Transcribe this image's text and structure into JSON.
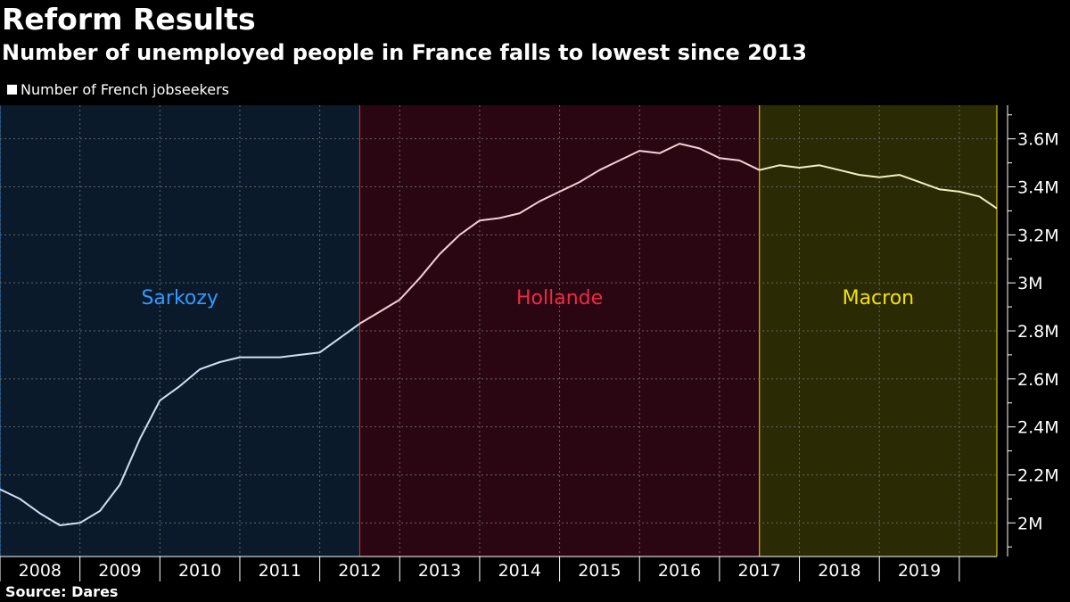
{
  "header": {
    "title": "Reform Results",
    "subtitle": "Number of unemployed people in France falls to lowest since 2013",
    "legend_label": "Number of French jobseekers"
  },
  "footer": {
    "source": "Source: Dares"
  },
  "colors": {
    "sarkozy_bg": "#0a1a2a",
    "sarkozy_label": "#3399ff",
    "sarkozy_line": "#cfe0f5",
    "hollande_bg": "#2a0612",
    "hollande_label": "#ee2a44",
    "hollande_line": "#f4cfd6",
    "macron_bg": "#2a2a05",
    "macron_label": "#f5e100",
    "macron_line": "#f3f0c4",
    "grid": "#666666"
  },
  "chart_data": {
    "type": "line",
    "title": "Reform Results",
    "subtitle": "Number of unemployed people in France falls to lowest since 2013",
    "xlabel": "",
    "ylabel": "",
    "xlim": [
      2007.5,
      2019.97
    ],
    "ylim": [
      1.86,
      3.74
    ],
    "y_ticks": [
      2.0,
      2.2,
      2.4,
      2.6,
      2.8,
      3.0,
      3.2,
      3.4,
      3.6
    ],
    "y_tick_labels": [
      "2M",
      "2.2M",
      "2.4M",
      "2.6M",
      "2.8M",
      "3M",
      "3.2M",
      "3.4M",
      "3.6M"
    ],
    "x_ticks": [
      2008,
      2009,
      2010,
      2011,
      2012,
      2013,
      2014,
      2015,
      2016,
      2017,
      2018,
      2019
    ],
    "x_tick_labels": [
      "2008",
      "2009",
      "2010",
      "2011",
      "2012",
      "2013",
      "2014",
      "2015",
      "2016",
      "2017",
      "2018",
      "2019"
    ],
    "grid": true,
    "legend_position": "top-left",
    "series": [
      {
        "name": "Number of French jobseekers",
        "x": [
          2007.5,
          2007.75,
          2008.0,
          2008.25,
          2008.5,
          2008.75,
          2009.0,
          2009.25,
          2009.5,
          2009.75,
          2010.0,
          2010.25,
          2010.5,
          2010.75,
          2011.0,
          2011.25,
          2011.5,
          2011.75,
          2012.0,
          2012.25,
          2012.5,
          2012.75,
          2013.0,
          2013.25,
          2013.5,
          2013.75,
          2014.0,
          2014.25,
          2014.5,
          2014.75,
          2015.0,
          2015.25,
          2015.5,
          2015.75,
          2016.0,
          2016.25,
          2016.5,
          2016.75,
          2017.0,
          2017.25,
          2017.5,
          2017.75,
          2018.0,
          2018.25,
          2018.5,
          2018.75,
          2019.0,
          2019.25,
          2019.5,
          2019.75,
          2019.97
        ],
        "values": [
          2.14,
          2.1,
          2.04,
          1.99,
          2.0,
          2.05,
          2.16,
          2.35,
          2.51,
          2.57,
          2.64,
          2.67,
          2.69,
          2.69,
          2.69,
          2.7,
          2.71,
          2.77,
          2.83,
          2.88,
          2.93,
          3.02,
          3.12,
          3.2,
          3.26,
          3.27,
          3.29,
          3.34,
          3.38,
          3.42,
          3.47,
          3.51,
          3.55,
          3.54,
          3.58,
          3.56,
          3.52,
          3.51,
          3.47,
          3.49,
          3.48,
          3.49,
          3.47,
          3.45,
          3.44,
          3.45,
          3.42,
          3.39,
          3.38,
          3.36,
          3.31
        ]
      }
    ],
    "periods": [
      {
        "label": "Sarkozy",
        "start": 2007.5,
        "end": 2012.0
      },
      {
        "label": "Hollande",
        "start": 2012.0,
        "end": 2017.0
      },
      {
        "label": "Macron",
        "start": 2017.0,
        "end": 2019.97
      }
    ]
  }
}
